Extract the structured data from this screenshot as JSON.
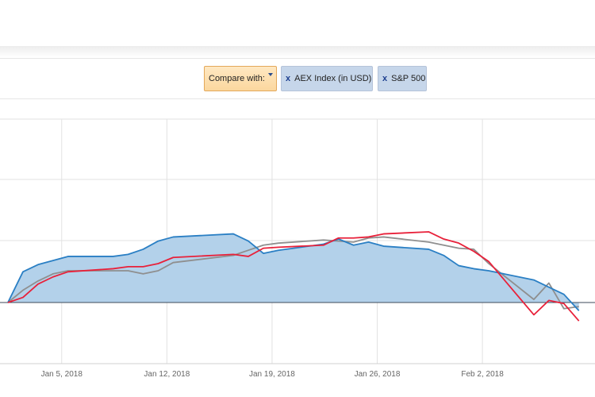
{
  "toolbar": {
    "compare_label": "Compare with:",
    "chips": [
      {
        "remove_glyph": "x",
        "label": "AEX Index (in USD)"
      },
      {
        "remove_glyph": "x",
        "label": "S&P 500"
      }
    ]
  },
  "chart_data": {
    "type": "area",
    "xlabel": "",
    "ylabel": "",
    "x_ticks": [
      "Jan 5, 2018",
      "Jan 12, 2018",
      "Jan 19, 2018",
      "Jan 26, 2018",
      "Feb 2, 2018"
    ],
    "grid": true,
    "x": [
      "Jan 1, 2018",
      "Jan 2, 2018",
      "Jan 3, 2018",
      "Jan 4, 2018",
      "Jan 5, 2018",
      "Jan 8, 2018",
      "Jan 9, 2018",
      "Jan 10, 2018",
      "Jan 11, 2018",
      "Jan 12, 2018",
      "Jan 16, 2018",
      "Jan 17, 2018",
      "Jan 18, 2018",
      "Jan 19, 2018",
      "Jan 22, 2018",
      "Jan 23, 2018",
      "Jan 24, 2018",
      "Jan 25, 2018",
      "Jan 26, 2018",
      "Jan 29, 2018",
      "Jan 30, 2018",
      "Jan 31, 2018",
      "Feb 1, 2018",
      "Feb 2, 2018",
      "Feb 5, 2018",
      "Feb 6, 2018",
      "Feb 7, 2018",
      "Feb 8, 2018"
    ],
    "series": [
      {
        "color": "#2a7fc4",
        "fill": "#b3d1ea",
        "values": [
          0,
          3.0,
          3.7,
          4.1,
          4.5,
          4.5,
          4.7,
          5.2,
          6.0,
          6.4,
          6.7,
          6.0,
          4.8,
          5.1,
          5.7,
          6.2,
          5.6,
          5.9,
          5.5,
          5.2,
          4.6,
          3.6,
          3.3,
          3.1,
          2.2,
          1.5,
          0.8,
          -0.8
        ]
      },
      {
        "color": "#8f8f8f",
        "values": [
          0,
          1.2,
          2.1,
          2.8,
          3.1,
          3.1,
          3.1,
          2.8,
          3.1,
          3.9,
          4.6,
          5.1,
          5.6,
          5.8,
          6.1,
          6.0,
          5.9,
          6.3,
          6.4,
          5.9,
          5.6,
          5.3,
          5.2,
          3.8,
          0.3,
          1.9,
          -0.6,
          -0.4
        ]
      },
      {
        "color": "#e8213a",
        "values": [
          0,
          0.5,
          1.8,
          2.5,
          3.0,
          3.3,
          3.5,
          3.5,
          3.8,
          4.4,
          4.7,
          4.5,
          5.3,
          5.4,
          5.6,
          6.3,
          6.3,
          6.4,
          6.7,
          6.9,
          6.2,
          5.8,
          5.0,
          4.0,
          -1.2,
          0.2,
          -0.1,
          -1.8
        ]
      }
    ]
  }
}
